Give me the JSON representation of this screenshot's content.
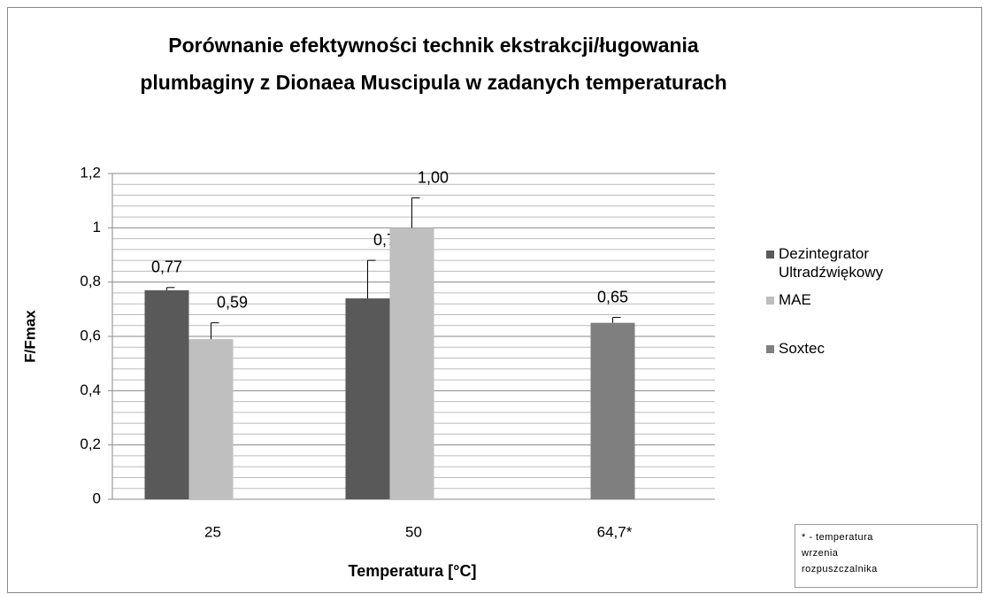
{
  "chart_data": {
    "type": "bar",
    "title": [
      "Porównanie efektywności technik ekstrakcji/ługowania",
      "plumbaginy z Dionaea Muscipula w zadanych temperaturach"
    ],
    "x_label": "Temperatura  [°C]",
    "y_label": "F/Fmax",
    "categories": [
      "25",
      "50",
      "64,7*"
    ],
    "series": [
      {
        "name": "Dezintegrator Ultradźwiękowy",
        "color": "#595959",
        "values": [
          0.77,
          0.74,
          null
        ],
        "value_labels": [
          "0,77",
          "0,74",
          null
        ],
        "errors": [
          0.01,
          0.14,
          null
        ]
      },
      {
        "name": "MAE",
        "color": "#bfbfbf",
        "values": [
          0.59,
          1.0,
          null
        ],
        "value_labels": [
          "0,59",
          "1,00",
          null
        ],
        "errors": [
          0.06,
          0.11,
          null
        ]
      },
      {
        "name": "Soxtec",
        "color": "#7f7f7f",
        "values": [
          null,
          null,
          0.65
        ],
        "value_labels": [
          null,
          null,
          "0,65"
        ],
        "errors": [
          null,
          null,
          0.02
        ]
      }
    ],
    "ylim": [
      0,
      1.2
    ],
    "yticks": [
      0,
      {
        "value": 0.2,
        "label": "0,2"
      },
      {
        "value": 0.4,
        "label": "0,4"
      },
      {
        "value": 0.6,
        "label": "0,6"
      },
      {
        "value": 0.8,
        "label": "0,8"
      },
      1,
      {
        "value": 1.2,
        "label": "1,2"
      }
    ],
    "minor_yticks": [
      0.04,
      0.08,
      0.12,
      0.16,
      0.24,
      0.28,
      0.32,
      0.36,
      0.44,
      0.48,
      0.52,
      0.56,
      0.64,
      0.68,
      0.72,
      0.76,
      0.84,
      0.88,
      0.92,
      0.96,
      1.04,
      1.08,
      1.12,
      1.16
    ],
    "grid": true,
    "legend": "right",
    "annotation": "* - temperatura wrzenia rozpuszczalnika"
  }
}
